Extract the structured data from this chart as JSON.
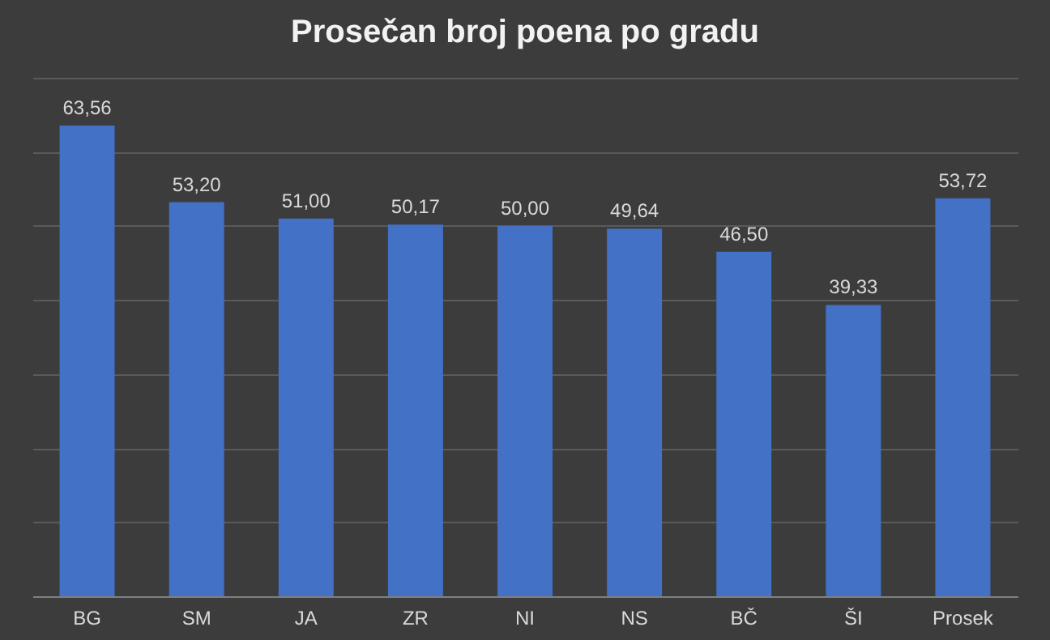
{
  "chart_data": {
    "type": "bar",
    "title": "Prosečan broj poena po gradu",
    "categories": [
      "BG",
      "SM",
      "JA",
      "ZR",
      "NI",
      "NS",
      "BČ",
      "ŠI",
      "Prosek"
    ],
    "values": [
      63.56,
      53.2,
      51.0,
      50.17,
      50.0,
      49.64,
      46.5,
      39.33,
      53.72
    ],
    "value_labels": [
      "63,56",
      "53,20",
      "51,00",
      "50,17",
      "50,00",
      "49,64",
      "46,50",
      "39,33",
      "53,72"
    ],
    "color": "#4271c6",
    "ylim": [
      0,
      70
    ],
    "yticks": [
      {
        "value": 0,
        "label": null
      },
      {
        "value": 10,
        "label": null
      },
      {
        "value": 20,
        "label": null
      },
      {
        "value": 30,
        "label": null
      },
      {
        "value": 40,
        "label": null
      },
      {
        "value": 50,
        "label": null
      },
      {
        "value": 60,
        "label": null
      },
      {
        "value": 70,
        "label": null
      }
    ],
    "grid": "y",
    "tick_labels": "x"
  }
}
